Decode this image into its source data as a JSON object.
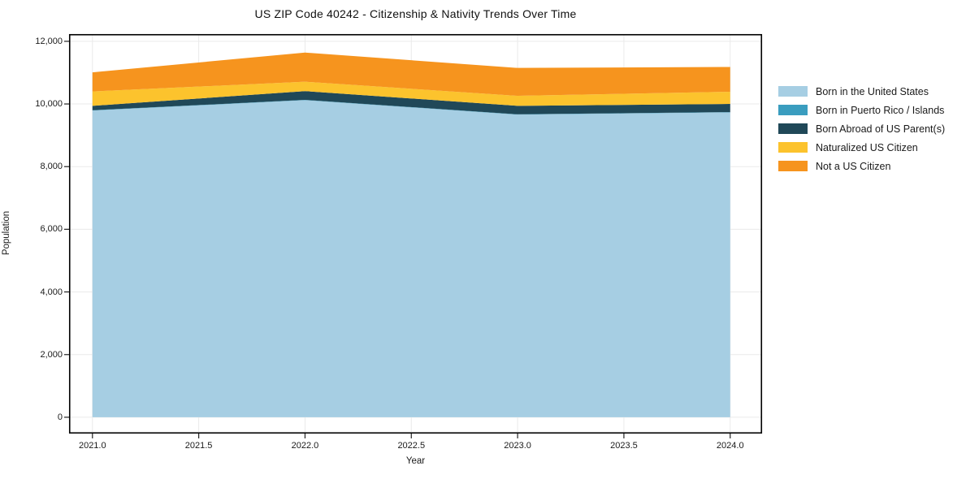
{
  "title": "US ZIP Code 40242 - Citizenship & Nativity Trends Over Time",
  "chart_data": {
    "type": "area",
    "stacked": true,
    "title": "US ZIP Code 40242 - Citizenship & Nativity Trends Over Time",
    "xlabel": "Year",
    "ylabel": "Population",
    "x": [
      2021,
      2022,
      2023,
      2024
    ],
    "series": [
      {
        "name": "Born in the United States",
        "color": "#a6cee3",
        "values": [
          9790,
          10120,
          9660,
          9730
        ]
      },
      {
        "name": "Born in Puerto Rico / Islands",
        "color": "#3a9dbf",
        "values": [
          10,
          10,
          10,
          10
        ]
      },
      {
        "name": "Born Abroad of US Parent(s)",
        "color": "#204858",
        "values": [
          140,
          280,
          270,
          260
        ]
      },
      {
        "name": "Naturalized US Citizen",
        "color": "#fcc32d",
        "values": [
          460,
          300,
          320,
          390
        ]
      },
      {
        "name": "Not a US Citizen",
        "color": "#f6941e",
        "values": [
          610,
          930,
          890,
          790
        ]
      }
    ],
    "totals": [
      11010,
      11640,
      11140,
      11180
    ],
    "xlim": [
      2020.89,
      2024.15
    ],
    "ylim": [
      -520,
      12230
    ],
    "xticks": [
      2021.0,
      2021.5,
      2022.0,
      2022.5,
      2023.0,
      2023.5,
      2024.0
    ],
    "xtick_labels": [
      "2021.0",
      "2021.5",
      "2022.0",
      "2022.5",
      "2023.0",
      "2023.5",
      "2024.0"
    ],
    "yticks": [
      0,
      2000,
      4000,
      6000,
      8000,
      10000,
      12000
    ],
    "ytick_labels": [
      "0",
      "2,000",
      "4,000",
      "6,000",
      "8,000",
      "10,000",
      "12,000"
    ],
    "grid": true,
    "grid_color": "#eaeaea",
    "spine_color": "#000000",
    "tick_color": "#222222",
    "legend_position": "right-outside"
  }
}
